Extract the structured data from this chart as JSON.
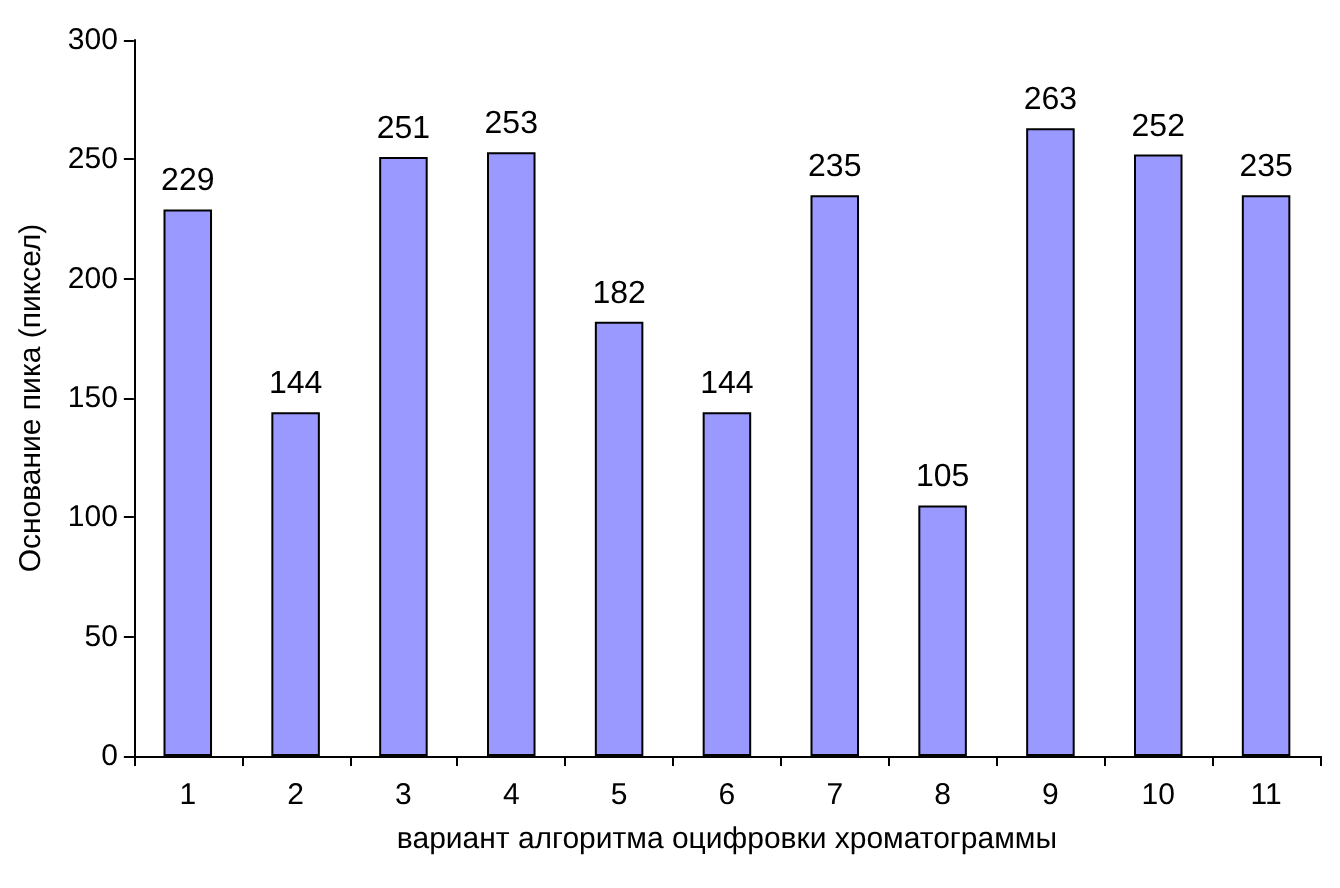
{
  "chart_data": {
    "type": "bar",
    "xlabel": "вариант алгоритма оцифровки хроматограммы",
    "ylabel": "Основание пика (пиксел)",
    "categories": [
      "1",
      "2",
      "3",
      "4",
      "5",
      "6",
      "7",
      "8",
      "9",
      "10",
      "11"
    ],
    "values": [
      229,
      144,
      251,
      253,
      182,
      144,
      235,
      105,
      263,
      252,
      235
    ],
    "color": "#9999ff",
    "data_labels": true,
    "ylim": [
      0,
      300
    ],
    "yticks": [
      0,
      50,
      100,
      150,
      200,
      250,
      300
    ],
    "grid": false
  }
}
